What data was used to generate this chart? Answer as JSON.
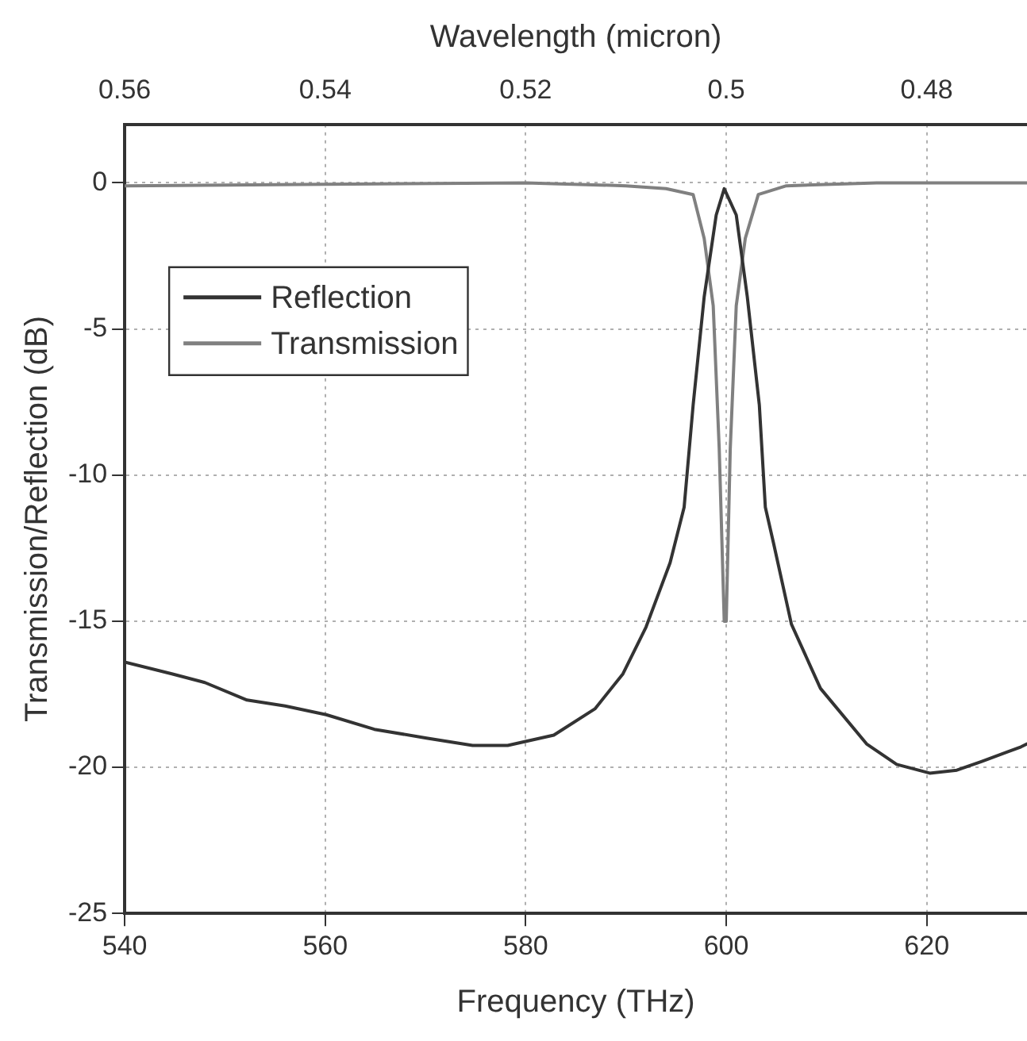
{
  "chart_data": {
    "type": "line",
    "xlabel": "Frequency (THz)",
    "ylabel": "Transmission/Reflection (dB)",
    "x2label": "Wavelength (micron)",
    "xlim": [
      540,
      630
    ],
    "xticks": [
      540,
      560,
      580,
      600,
      620
    ],
    "x2lim": [
      0.56,
      0.47
    ],
    "x2ticks": [
      0.56,
      0.54,
      0.52,
      0.5,
      0.48
    ],
    "ylim": [
      -25,
      2
    ],
    "yticks": [
      -25,
      -20,
      -15,
      -10,
      -5,
      0
    ],
    "grid": true,
    "legend": "top left",
    "marker": "none",
    "line_style": "solid",
    "series": [
      {
        "name": "Reflection",
        "color": "#333333",
        "x": [
          540,
          544.7,
          548,
          552.2,
          556,
          560.1,
          564.9,
          570.1,
          574.7,
          578.2,
          582.8,
          586.9,
          589.7,
          592.0,
          594.4,
          595.8,
          596.7,
          597.8,
          599.0,
          599.8,
          601.0,
          602.1,
          603.3,
          603.9,
          604.7,
          606.5,
          609.4,
          614.0,
          617,
          620.3,
          623,
          625.5,
          629.4,
          630
        ],
        "values": [
          -16.4,
          -16.8,
          -17.1,
          -17.7,
          -17.9,
          -18.2,
          -18.7,
          -19.0,
          -19.25,
          -19.25,
          -18.9,
          -18.0,
          -16.8,
          -15.2,
          -13.0,
          -11.1,
          -7.6,
          -3.9,
          -1.1,
          -0.2,
          -1.1,
          -3.9,
          -7.6,
          -11.1,
          -12.3,
          -15.1,
          -17.3,
          -19.2,
          -19.9,
          -20.2,
          -20.1,
          -19.8,
          -19.3,
          -19.2
        ]
      },
      {
        "name": "Transmission",
        "color": "#808080",
        "x": [
          540,
          560,
          580,
          590,
          594,
          596.7,
          597.8,
          598.7,
          599.3,
          599.8,
          600.0,
          600.4,
          601.0,
          601.9,
          603.2,
          606,
          615,
          630
        ],
        "values": [
          -0.1,
          -0.05,
          0,
          -0.1,
          -0.2,
          -0.4,
          -1.9,
          -4.2,
          -9.1,
          -15,
          -15,
          -9.1,
          -4.2,
          -1.9,
          -0.4,
          -0.1,
          0,
          0
        ]
      }
    ]
  }
}
